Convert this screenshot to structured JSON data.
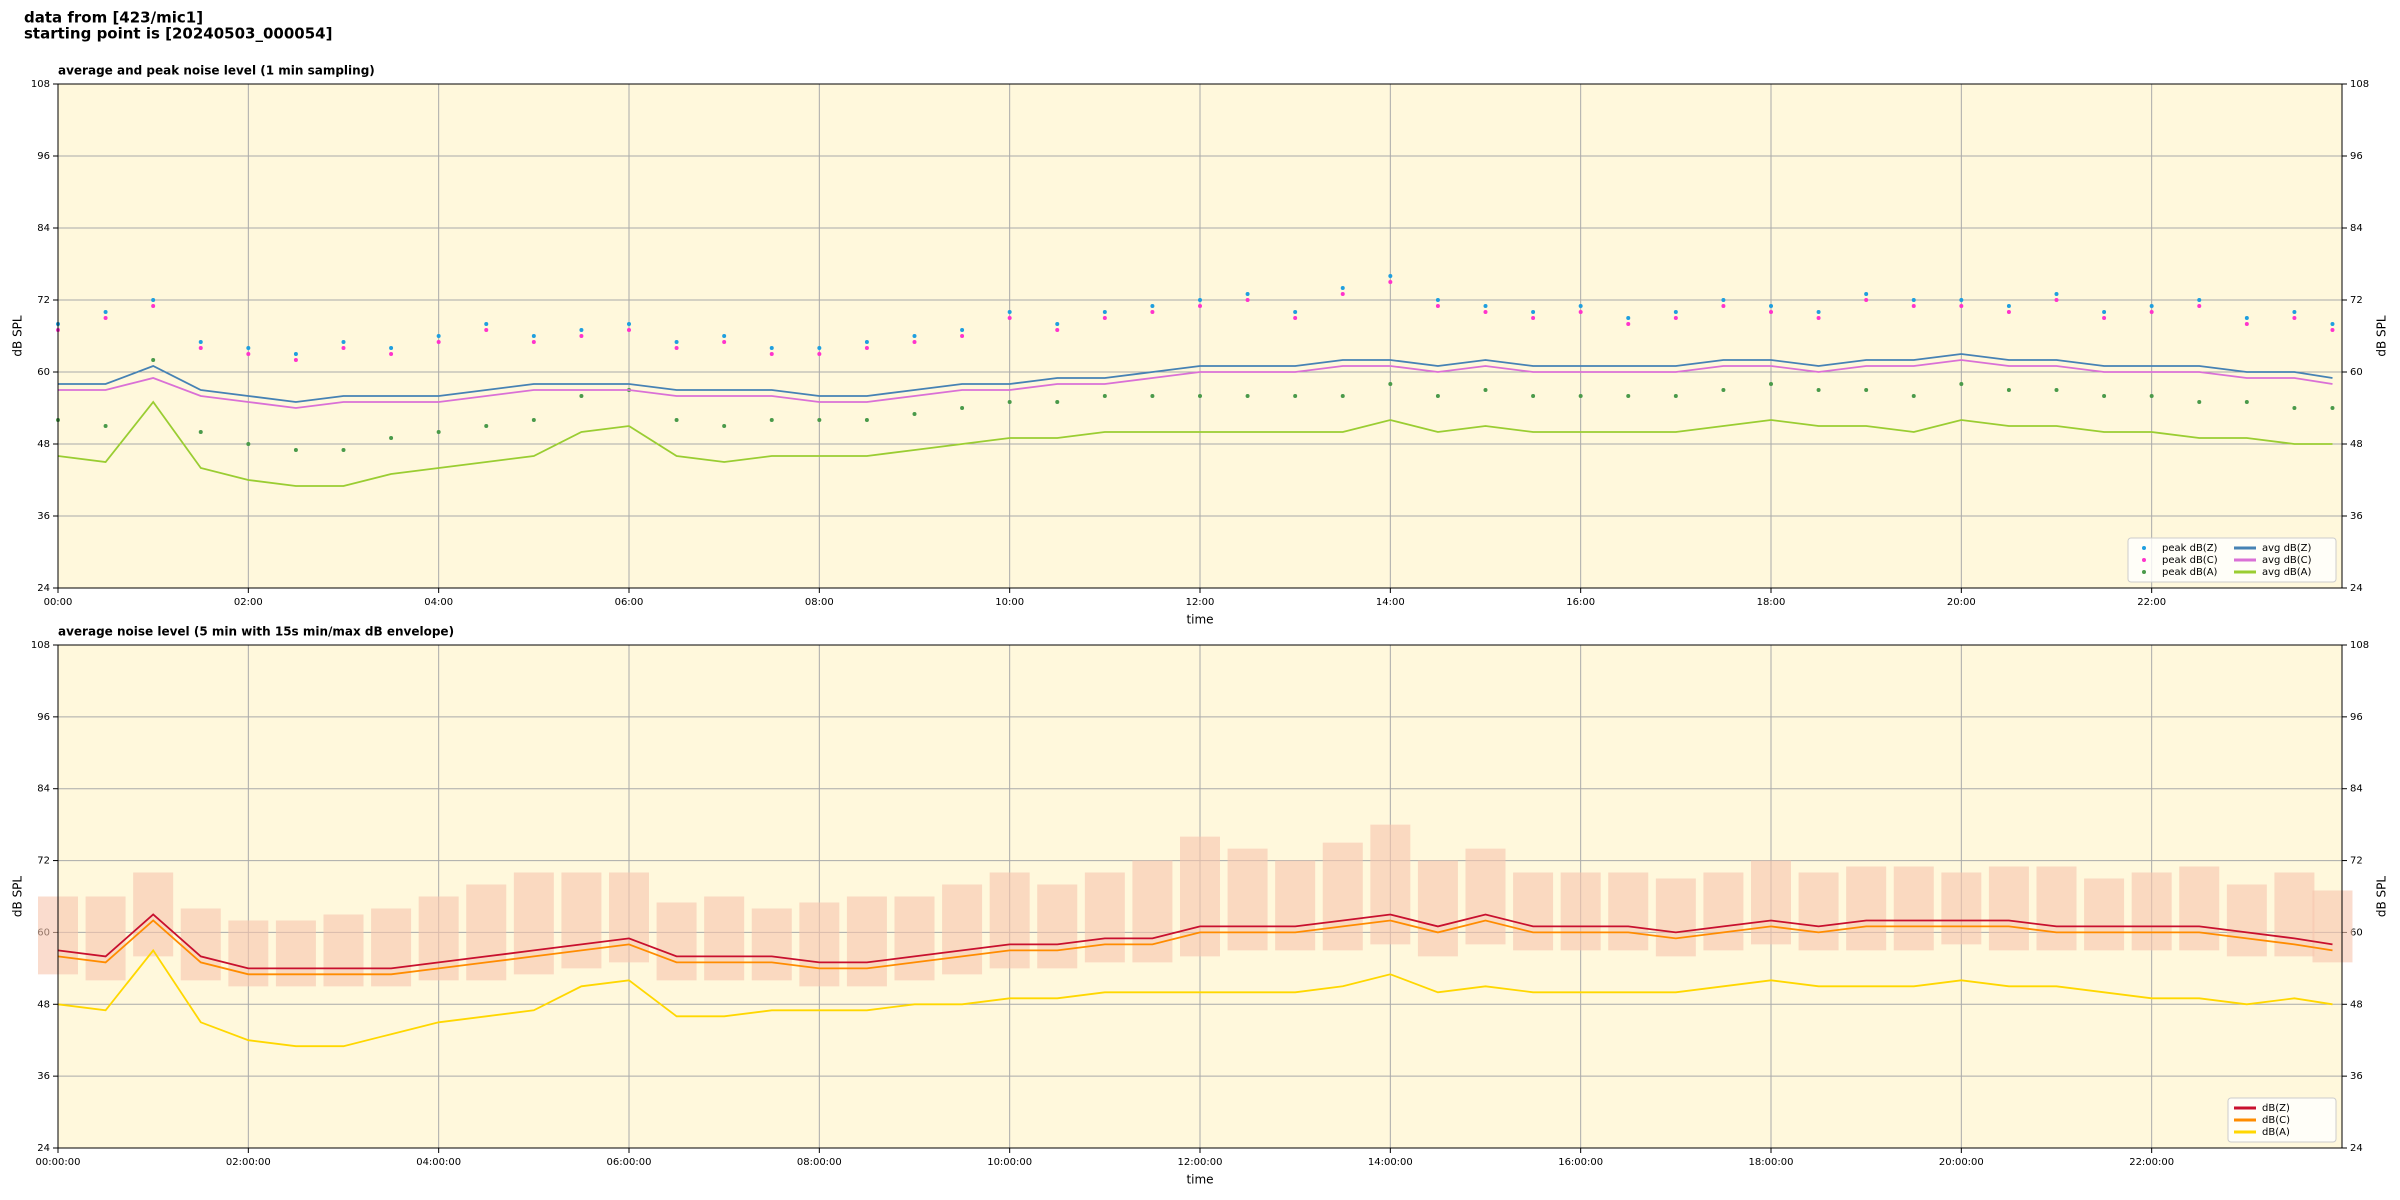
{
  "header": {
    "line1": "data from [423/mic1]",
    "line2": "starting point is [20240503_000054]"
  },
  "chart_data": [
    {
      "type": "line",
      "title": "average and peak noise level (1 min sampling)",
      "xlabel": "time",
      "ylabel": "dB SPL",
      "y2label": "dB SPL",
      "xlim": [
        0,
        24
      ],
      "ylim": [
        24,
        108
      ],
      "yticks": [
        24,
        36,
        48,
        60,
        72,
        84,
        96,
        108
      ],
      "xticks": [
        {
          "value": 0,
          "label": "00:00"
        },
        {
          "value": 2,
          "label": "02:00"
        },
        {
          "value": 4,
          "label": "04:00"
        },
        {
          "value": 6,
          "label": "06:00"
        },
        {
          "value": 8,
          "label": "08:00"
        },
        {
          "value": 10,
          "label": "10:00"
        },
        {
          "value": 12,
          "label": "12:00"
        },
        {
          "value": 14,
          "label": "14:00"
        },
        {
          "value": 16,
          "label": "16:00"
        },
        {
          "value": 18,
          "label": "18:00"
        },
        {
          "value": 20,
          "label": "20:00"
        },
        {
          "value": 22,
          "label": "22:00"
        }
      ],
      "grid": true,
      "legend": "lower right",
      "legend_columns": 2,
      "background": "#fff8dc",
      "x": [
        0,
        0.5,
        1,
        1.5,
        2,
        2.5,
        3,
        3.5,
        4,
        4.5,
        5,
        5.5,
        6,
        6.5,
        7,
        7.5,
        8,
        8.5,
        9,
        9.5,
        10,
        10.5,
        11,
        11.5,
        12,
        12.5,
        13,
        13.5,
        14,
        14.5,
        15,
        15.5,
        16,
        16.5,
        17,
        17.5,
        18,
        18.5,
        19,
        19.5,
        20,
        20.5,
        21,
        21.5,
        22,
        22.5,
        23,
        23.5,
        23.9
      ],
      "series": [
        {
          "name": "peak dB(Z)",
          "color": "#1f9fdf",
          "mode": "markers",
          "values": [
            68,
            70,
            72,
            65,
            64,
            63,
            65,
            64,
            66,
            68,
            66,
            67,
            68,
            65,
            66,
            64,
            64,
            65,
            66,
            67,
            70,
            68,
            70,
            71,
            72,
            73,
            70,
            74,
            76,
            72,
            71,
            70,
            71,
            69,
            70,
            72,
            71,
            70,
            73,
            72,
            72,
            71,
            73,
            70,
            71,
            72,
            69,
            70,
            68
          ]
        },
        {
          "name": "peak dB(C)",
          "color": "#ff33cc",
          "mode": "markers",
          "values": [
            67,
            69,
            71,
            64,
            63,
            62,
            64,
            63,
            65,
            67,
            65,
            66,
            67,
            64,
            65,
            63,
            63,
            64,
            65,
            66,
            69,
            67,
            69,
            70,
            71,
            72,
            69,
            73,
            75,
            71,
            70,
            69,
            70,
            68,
            69,
            71,
            70,
            69,
            72,
            71,
            71,
            70,
            72,
            69,
            70,
            71,
            68,
            69,
            67
          ]
        },
        {
          "name": "peak dB(A)",
          "color": "#4a9a4a",
          "mode": "markers",
          "values": [
            52,
            51,
            62,
            50,
            48,
            47,
            47,
            49,
            50,
            51,
            52,
            56,
            57,
            52,
            51,
            52,
            52,
            52,
            53,
            54,
            55,
            55,
            56,
            56,
            56,
            56,
            56,
            56,
            58,
            56,
            57,
            56,
            56,
            56,
            56,
            57,
            58,
            57,
            57,
            56,
            58,
            57,
            57,
            56,
            56,
            55,
            55,
            54,
            54
          ]
        },
        {
          "name": "avg dB(Z)",
          "color": "#4682b4",
          "mode": "lines",
          "values": [
            58,
            58,
            61,
            57,
            56,
            55,
            56,
            56,
            56,
            57,
            58,
            58,
            58,
            57,
            57,
            57,
            56,
            56,
            57,
            58,
            58,
            59,
            59,
            60,
            61,
            61,
            61,
            62,
            62,
            61,
            62,
            61,
            61,
            61,
            61,
            62,
            62,
            61,
            62,
            62,
            63,
            62,
            62,
            61,
            61,
            61,
            60,
            60,
            59
          ]
        },
        {
          "name": "avg dB(C)",
          "color": "#da70d6",
          "mode": "lines",
          "values": [
            57,
            57,
            59,
            56,
            55,
            54,
            55,
            55,
            55,
            56,
            57,
            57,
            57,
            56,
            56,
            56,
            55,
            55,
            56,
            57,
            57,
            58,
            58,
            59,
            60,
            60,
            60,
            61,
            61,
            60,
            61,
            60,
            60,
            60,
            60,
            61,
            61,
            60,
            61,
            61,
            62,
            61,
            61,
            60,
            60,
            60,
            59,
            59,
            58
          ]
        },
        {
          "name": "avg dB(A)",
          "color": "#9acd32",
          "mode": "lines",
          "values": [
            46,
            45,
            55,
            44,
            42,
            41,
            41,
            43,
            44,
            45,
            46,
            50,
            51,
            46,
            45,
            46,
            46,
            46,
            47,
            48,
            49,
            49,
            50,
            50,
            50,
            50,
            50,
            50,
            52,
            50,
            51,
            50,
            50,
            50,
            50,
            51,
            52,
            51,
            51,
            50,
            52,
            51,
            51,
            50,
            50,
            49,
            49,
            48,
            48
          ]
        }
      ]
    },
    {
      "type": "line",
      "title": "average noise level (5 min with 15s min/max dB envelope)",
      "xlabel": "time",
      "ylabel": "dB SPL",
      "y2label": "dB SPL",
      "xlim": [
        0,
        24
      ],
      "ylim": [
        24,
        108
      ],
      "yticks": [
        24,
        36,
        48,
        60,
        72,
        84,
        96,
        108
      ],
      "xticks": [
        {
          "value": 0,
          "label": "00:00:00"
        },
        {
          "value": 2,
          "label": "02:00:00"
        },
        {
          "value": 4,
          "label": "04:00:00"
        },
        {
          "value": 6,
          "label": "06:00:00"
        },
        {
          "value": 8,
          "label": "08:00:00"
        },
        {
          "value": 10,
          "label": "10:00:00"
        },
        {
          "value": 12,
          "label": "12:00:00"
        },
        {
          "value": 14,
          "label": "14:00:00"
        },
        {
          "value": 16,
          "label": "16:00:00"
        },
        {
          "value": 18,
          "label": "18:00:00"
        },
        {
          "value": 20,
          "label": "20:00:00"
        },
        {
          "value": 22,
          "label": "22:00:00"
        }
      ],
      "grid": true,
      "legend": "lower right",
      "legend_columns": 1,
      "background": "#fff8dc",
      "x": [
        0,
        0.5,
        1,
        1.5,
        2,
        2.5,
        3,
        3.5,
        4,
        4.5,
        5,
        5.5,
        6,
        6.5,
        7,
        7.5,
        8,
        8.5,
        9,
        9.5,
        10,
        10.5,
        11,
        11.5,
        12,
        12.5,
        13,
        13.5,
        14,
        14.5,
        15,
        15.5,
        16,
        16.5,
        17,
        17.5,
        18,
        18.5,
        19,
        19.5,
        20,
        20.5,
        21,
        21.5,
        22,
        22.5,
        23,
        23.5,
        23.9
      ],
      "band": {
        "color": "#f6c4ae",
        "low": [
          53,
          52,
          56,
          52,
          51,
          51,
          51,
          51,
          52,
          52,
          53,
          54,
          55,
          52,
          52,
          52,
          51,
          51,
          52,
          53,
          54,
          54,
          55,
          55,
          56,
          57,
          57,
          57,
          58,
          56,
          58,
          57,
          57,
          57,
          56,
          57,
          58,
          57,
          57,
          57,
          58,
          57,
          57,
          57,
          57,
          57,
          56,
          56,
          55
        ],
        "high": [
          66,
          66,
          70,
          64,
          62,
          62,
          63,
          64,
          66,
          68,
          70,
          70,
          70,
          65,
          66,
          64,
          65,
          66,
          66,
          68,
          70,
          68,
          70,
          72,
          76,
          74,
          72,
          75,
          78,
          72,
          74,
          70,
          70,
          70,
          69,
          70,
          72,
          70,
          71,
          71,
          70,
          71,
          71,
          69,
          70,
          71,
          68,
          70,
          67
        ]
      },
      "series": [
        {
          "name": "dB(Z)",
          "color": "#c8102e",
          "mode": "lines",
          "values": [
            57,
            56,
            63,
            56,
            54,
            54,
            54,
            54,
            55,
            56,
            57,
            58,
            59,
            56,
            56,
            56,
            55,
            55,
            56,
            57,
            58,
            58,
            59,
            59,
            61,
            61,
            61,
            62,
            63,
            61,
            63,
            61,
            61,
            61,
            60,
            61,
            62,
            61,
            62,
            62,
            62,
            62,
            61,
            61,
            61,
            61,
            60,
            59,
            58
          ]
        },
        {
          "name": "dB(C)",
          "color": "#ff8c00",
          "mode": "lines",
          "values": [
            56,
            55,
            62,
            55,
            53,
            53,
            53,
            53,
            54,
            55,
            56,
            57,
            58,
            55,
            55,
            55,
            54,
            54,
            55,
            56,
            57,
            57,
            58,
            58,
            60,
            60,
            60,
            61,
            62,
            60,
            62,
            60,
            60,
            60,
            59,
            60,
            61,
            60,
            61,
            61,
            61,
            61,
            60,
            60,
            60,
            60,
            59,
            58,
            57
          ]
        },
        {
          "name": "dB(A)",
          "color": "#ffd700",
          "mode": "lines",
          "values": [
            48,
            47,
            57,
            45,
            42,
            41,
            41,
            43,
            45,
            46,
            47,
            51,
            52,
            46,
            46,
            47,
            47,
            47,
            48,
            48,
            49,
            49,
            50,
            50,
            50,
            50,
            50,
            51,
            53,
            50,
            51,
            50,
            50,
            50,
            50,
            51,
            52,
            51,
            51,
            51,
            52,
            51,
            51,
            50,
            49,
            49,
            48,
            49,
            48
          ]
        }
      ]
    }
  ]
}
